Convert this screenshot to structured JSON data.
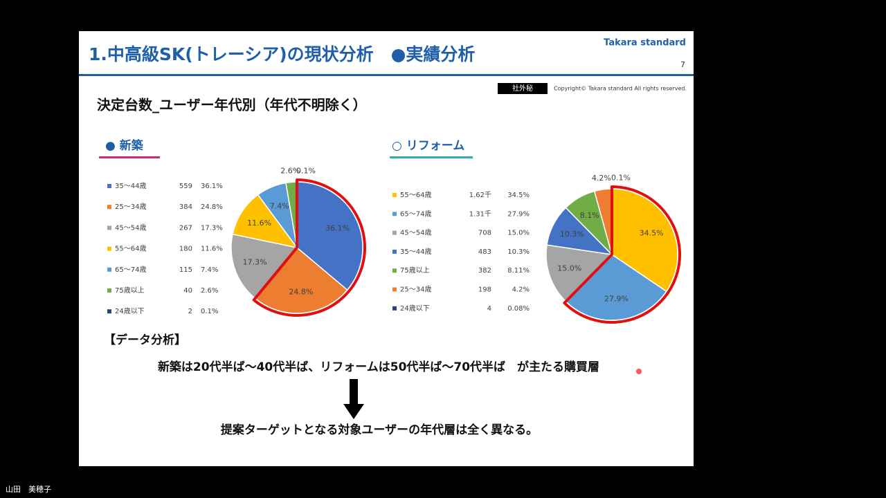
{
  "slide": {
    "title": "1.中高級SK(トレーシア)の現状分析　●実績分析",
    "brand": "Takara standard",
    "page": "7",
    "confidential": "社外秘",
    "copyright": "Copyright© Takara standard All rights reserved.",
    "subtitle": "決定台数_ユーザー年代別（年代不明除く）",
    "analysis_heading": "【データ分析】",
    "finding": "新築は20代半ば～40代半ば、リフォームは50代半ば～70代半ば　が主たる購買層",
    "conclusion": "提案ターゲットとなる対象ユーザーの年代層は全く異なる。"
  },
  "presenter": "山田　美穂子",
  "chart_data": [
    {
      "type": "pie",
      "title": "● 新築",
      "categories": [
        "35～44歳",
        "25～34歳",
        "45～54歳",
        "55～64歳",
        "65～74歳",
        "75歳以上",
        "24歳以下"
      ],
      "counts": [
        559,
        384,
        267,
        180,
        115,
        40,
        2
      ],
      "values": [
        36.1,
        24.8,
        17.3,
        11.6,
        7.4,
        2.6,
        0.1
      ],
      "value_labels": [
        "36.1%",
        "24.8%",
        "17.3%",
        "11.6%",
        "7.4%",
        "2.6%",
        "0.1%"
      ],
      "slice_labels": [
        "36.1%",
        "24.8%",
        "17.3%",
        "11.6%",
        "7.4%",
        "2.6%",
        "0.1%"
      ],
      "colors": [
        "#4472c4",
        "#ed7d31",
        "#a5a5a5",
        "#ffc000",
        "#5b9bd5",
        "#70ad47",
        "#264478"
      ]
    },
    {
      "type": "pie",
      "title": "○ リフォーム",
      "categories": [
        "55～64歳",
        "65～74歳",
        "45～54歳",
        "35～44歳",
        "75歳以上",
        "25～34歳",
        "24歳以下"
      ],
      "counts": [
        {
          "value": 1620,
          "label": "1.62千"
        },
        {
          "value": 1310,
          "label": "1.31千"
        },
        708,
        483,
        382,
        198,
        4
      ],
      "values": [
        34.5,
        27.9,
        15.0,
        10.3,
        8.11,
        4.2,
        0.08
      ],
      "value_labels": [
        "34.5%",
        "27.9%",
        "15.0%",
        "10.3%",
        "8.11%",
        "4.2%",
        "0.08%"
      ],
      "slice_labels": [
        "34.5%",
        "27.9%",
        "15.0%",
        "10.3%",
        "8.1%",
        "4.2%",
        "0.1%"
      ],
      "colors": [
        "#ffc000",
        "#5b9bd5",
        "#a5a5a5",
        "#4472c4",
        "#70ad47",
        "#ed7d31",
        "#264478"
      ]
    }
  ]
}
